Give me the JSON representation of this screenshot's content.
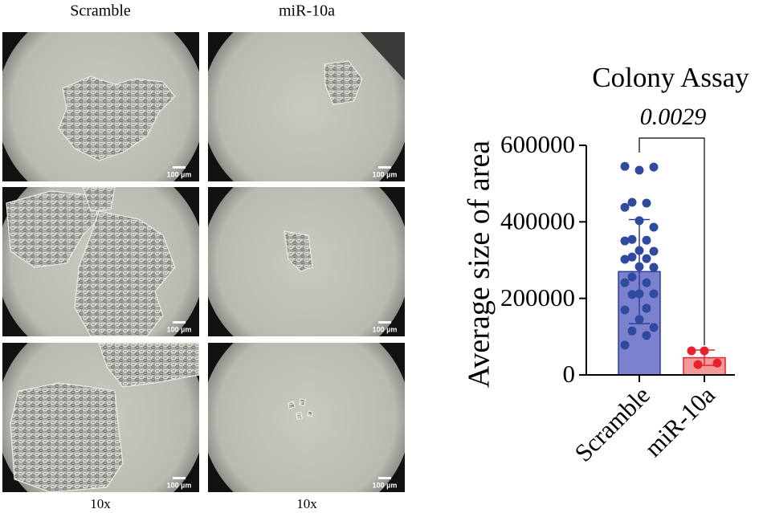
{
  "figure": {
    "columns": [
      "Scramble",
      "miR-10a"
    ],
    "scale_bar": "100 µm",
    "magnification": [
      "10x",
      "10x"
    ]
  },
  "chart_data": {
    "type": "bar",
    "title": "Colony Assay",
    "y_label": "Average size of area",
    "categories": [
      "Scramble",
      "miR-10a"
    ],
    "values": [
      270000,
      45000
    ],
    "errors": [
      136000,
      20000
    ],
    "colors": [
      "#7b80cf",
      "#f29a9a"
    ],
    "edge_colors": [
      "#2e3f9e",
      "#e8222c"
    ],
    "point_colors": [
      "#2f4a9e",
      "#e8222c"
    ],
    "points": [
      [
        545000,
        535000,
        543000,
        451000,
        449000,
        438000,
        403000,
        386000,
        354000,
        352000,
        350000,
        325000,
        323000,
        308000,
        304000,
        302000,
        283000,
        281000,
        256000,
        241000,
        241000,
        212000,
        212000,
        210000,
        174000,
        170000,
        145000,
        124000,
        115000,
        103000,
        78000
      ],
      [
        63000,
        63000,
        31000,
        27000
      ]
    ],
    "annotation": "0.0029",
    "ylim": [
      0,
      600000
    ],
    "yticks": [
      0,
      200000,
      400000,
      600000
    ]
  }
}
